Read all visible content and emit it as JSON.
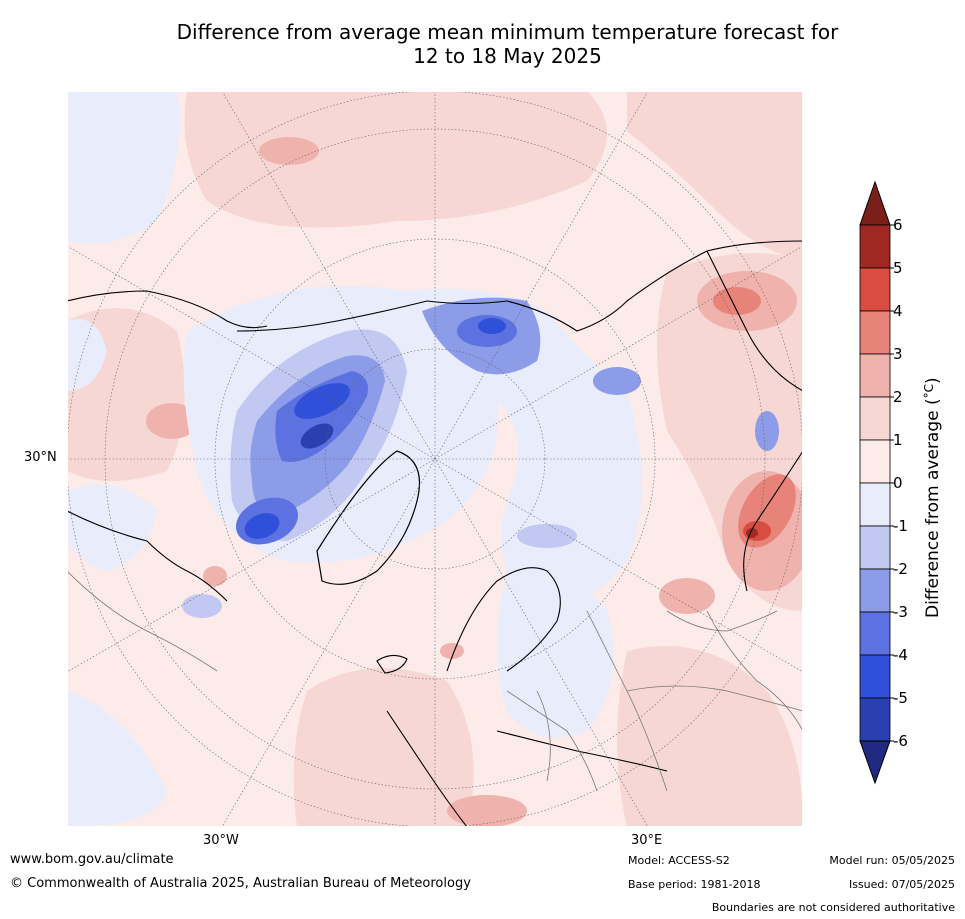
{
  "title_line1": "Difference from average mean minimum temperature forecast for",
  "title_line2": "12 to 18 May 2025",
  "map": {
    "latitude_labels": [
      "30°N"
    ],
    "longitude_labels": [
      "30°W",
      "30°E"
    ]
  },
  "colorbar": {
    "label": "Difference from average (°C)",
    "label_prefix": "Difference from average (",
    "label_unit": "°C",
    "label_suffix": ")",
    "ticks": [
      "6",
      "5",
      "4",
      "3",
      "2",
      "1",
      "0",
      "-1",
      "-2",
      "-3",
      "-4",
      "-5",
      "-6"
    ],
    "colors": [
      "#a02823",
      "#d94c40",
      "#e8837a",
      "#efb2ac",
      "#f6d7d4",
      "#fcebe9",
      "#e9ecfb",
      "#c1c8f2",
      "#8d9ce8",
      "#5b72e0",
      "#3050da",
      "#2a40b0"
    ],
    "over_color": "#7a1f1a",
    "under_color": "#1f2a80"
  },
  "footer": {
    "url": "www.bom.gov.au/climate",
    "copyright": "© Commonwealth of Australia 2025, Australian Bureau of Meteorology",
    "model": "Model: ACCESS-S2",
    "base_period": "Base period: 1981-2018",
    "model_run": "Model run: 05/05/2025",
    "issued": "Issued: 07/05/2025",
    "disclaimer": "Boundaries are not considered authoritative"
  }
}
